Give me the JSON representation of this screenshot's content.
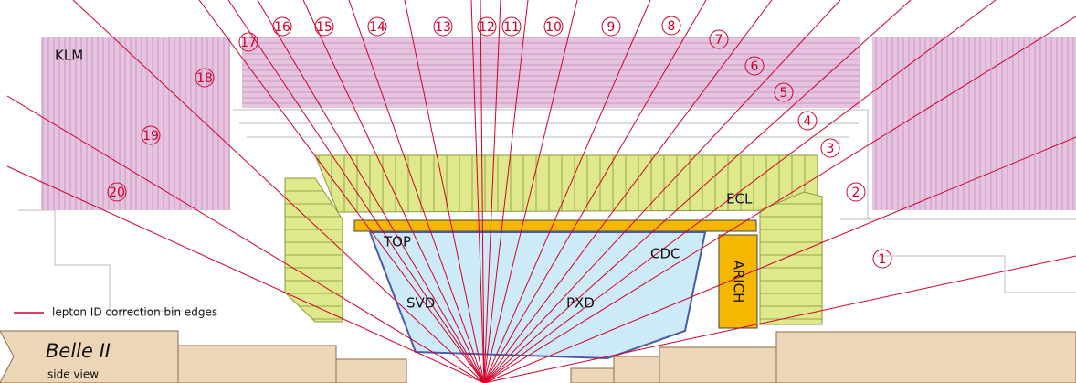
{
  "detectors": {
    "klm": "KLM",
    "ecl": "ECL",
    "top": "TOP",
    "cdc": "CDC",
    "svd": "SVD",
    "pxd": "PXD",
    "arich": "ARICH"
  },
  "bins": [
    "1",
    "2",
    "3",
    "4",
    "5",
    "6",
    "7",
    "8",
    "9",
    "10",
    "11",
    "12",
    "13",
    "14",
    "15",
    "16",
    "17",
    "18",
    "19",
    "20"
  ],
  "legend": "lepton ID correction bin edges",
  "caption": {
    "title": "Belle II",
    "subtitle": "side view"
  }
}
